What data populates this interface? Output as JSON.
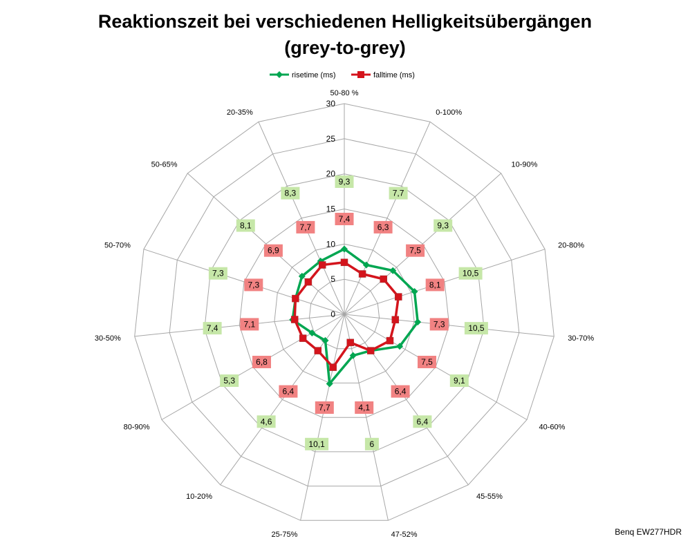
{
  "chart_data": {
    "type": "radar",
    "title_line1": "Reaktionszeit bei verschiedenen Helligkeitsübergängen",
    "title_line2": "(grey-to-grey)",
    "categories": [
      "50-80 %",
      "0-100%",
      "10-90%",
      "20-80%",
      "30-70%",
      "40-60%",
      "45-55%",
      "47-52%",
      "25-75%",
      "10-20%",
      "80-90%",
      "30-50%",
      "50-70%",
      "50-65%",
      "20-35%"
    ],
    "axis_ticks": [
      "0",
      "5",
      "10",
      "15",
      "20",
      "25",
      "30"
    ],
    "rmax": 30,
    "series": [
      {
        "name": "risetime (ms)",
        "color": "#00a651",
        "label_bg": "#c6e7a8",
        "marker": "diamond",
        "values": [
          9.3,
          7.7,
          9.3,
          10.5,
          10.5,
          9.1,
          6.4,
          6,
          10.1,
          4.6,
          5.3,
          7.4,
          7.3,
          8.1,
          8.3
        ],
        "labels": [
          "9,3",
          "7,7",
          "9,3",
          "10,5",
          "10,5",
          "9,1",
          "6,4",
          "6",
          "10,1",
          "4,6",
          "5,3",
          "7,4",
          "7,3",
          "8,1",
          "8,3"
        ]
      },
      {
        "name": "falltime (ms)",
        "color": "#d4141c",
        "label_bg": "#f18282",
        "marker": "square",
        "values": [
          7.4,
          6.3,
          7.5,
          8.1,
          7.3,
          7.5,
          6.4,
          4.1,
          7.7,
          6.4,
          6.8,
          7.1,
          7.3,
          6.9,
          7.7
        ],
        "labels": [
          "7,4",
          "6,3",
          "7,5",
          "8,1",
          "7,3",
          "7,5",
          "6,4",
          "4,1",
          "7,7",
          "6,4",
          "6,8",
          "7,1",
          "7,3",
          "6,9",
          "7,7"
        ]
      }
    ],
    "legend_position": "top"
  },
  "footer": "Benq EW277HDR"
}
